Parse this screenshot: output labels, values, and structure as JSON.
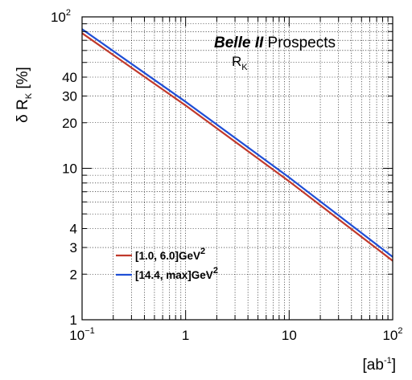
{
  "chart_data": {
    "type": "line",
    "x_scale": "log",
    "y_scale": "log",
    "xlim": [
      0.1,
      100
    ],
    "ylim": [
      1,
      100
    ],
    "grid": true,
    "xlabel": {
      "base": "[ab",
      "exp": "-1",
      "tail": "]"
    },
    "ylabel": {
      "main": "δ R",
      "sub": "K",
      "tail": " [%]"
    },
    "annotation": {
      "bold_italic": "Belle II",
      "rest": " Prospects",
      "line2_main": "R",
      "line2_sub": "K"
    },
    "x_ticks": [
      {
        "value": 0.1,
        "base": "10",
        "exp": "−1"
      },
      {
        "value": 1,
        "base": "1",
        "exp": ""
      },
      {
        "value": 10,
        "base": "10",
        "exp": ""
      },
      {
        "value": 100,
        "base": "10",
        "exp": "2"
      }
    ],
    "y_ticks": [
      {
        "value": 1,
        "base": "1",
        "exp": ""
      },
      {
        "value": 2,
        "base": "2",
        "exp": ""
      },
      {
        "value": 3,
        "base": "3",
        "exp": ""
      },
      {
        "value": 4,
        "base": "4",
        "exp": ""
      },
      {
        "value": 10,
        "base": "10",
        "exp": ""
      },
      {
        "value": 20,
        "base": "20",
        "exp": ""
      },
      {
        "value": 30,
        "base": "30",
        "exp": ""
      },
      {
        "value": 40,
        "base": "40",
        "exp": ""
      },
      {
        "value": 100,
        "base": "10",
        "exp": "2"
      }
    ],
    "legend_position": "bottom-left",
    "series": [
      {
        "name": "[1.0, 6.0]GeV",
        "name_exp": "2",
        "color": "#c0392b",
        "x": [
          0.1,
          1,
          10,
          100
        ],
        "y": [
          78,
          26,
          8.2,
          2.45
        ]
      },
      {
        "name": "[14.4, max]GeV",
        "name_exp": "2",
        "color": "#1f4fd6",
        "x": [
          0.1,
          1,
          10,
          100
        ],
        "y": [
          83,
          27.5,
          8.7,
          2.6
        ]
      }
    ]
  }
}
